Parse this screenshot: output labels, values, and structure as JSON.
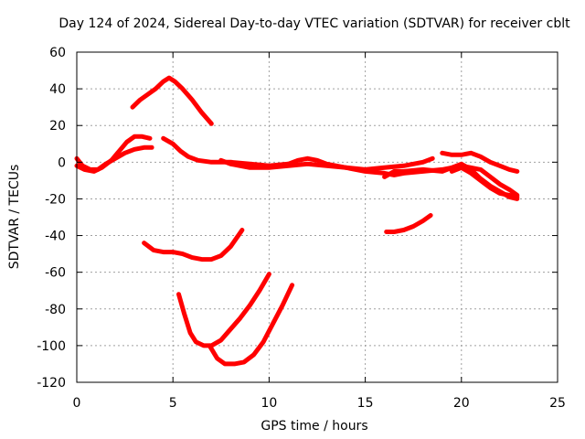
{
  "chart_data": {
    "type": "line",
    "title": "Day 124 of 2024, Sidereal Day-to-day VTEC variation (SDTVAR) for receiver cblt",
    "xlabel": "GPS time / hours",
    "ylabel": "SDTVAR / TECUs",
    "xlim": [
      0,
      25
    ],
    "ylim": [
      -120,
      60
    ],
    "xticks": [
      0,
      5,
      10,
      15,
      20,
      25
    ],
    "yticks": [
      -120,
      -100,
      -80,
      -60,
      -40,
      -20,
      0,
      20,
      40,
      60
    ],
    "grid": true,
    "color": "#ff0000",
    "series": [
      {
        "name": "arc-a",
        "points": [
          [
            0,
            2
          ],
          [
            0.3,
            -2
          ],
          [
            0.7,
            -4
          ],
          [
            1.1,
            -4
          ],
          [
            1.5,
            -1
          ],
          [
            2.0,
            2
          ],
          [
            2.5,
            5
          ],
          [
            3.0,
            7
          ],
          [
            3.5,
            8
          ],
          [
            3.9,
            8
          ]
        ]
      },
      {
        "name": "arc-b",
        "points": [
          [
            0,
            -2
          ],
          [
            0.4,
            -4
          ],
          [
            0.9,
            -5
          ],
          [
            1.3,
            -3
          ],
          [
            1.8,
            1
          ],
          [
            2.2,
            6
          ],
          [
            2.6,
            11
          ],
          [
            3.0,
            14
          ],
          [
            3.4,
            14
          ],
          [
            3.8,
            13
          ]
        ]
      },
      {
        "name": "arc-c",
        "points": [
          [
            2.9,
            30
          ],
          [
            3.3,
            34
          ],
          [
            3.7,
            37
          ],
          [
            4.1,
            40
          ],
          [
            4.5,
            44
          ],
          [
            4.8,
            46
          ],
          [
            5.1,
            44
          ],
          [
            5.5,
            40
          ],
          [
            6.0,
            34
          ],
          [
            6.5,
            27
          ],
          [
            7.0,
            21
          ]
        ]
      },
      {
        "name": "arc-d",
        "points": [
          [
            4.5,
            13
          ],
          [
            5.0,
            10
          ],
          [
            5.4,
            6
          ],
          [
            5.8,
            3
          ],
          [
            6.3,
            1
          ],
          [
            7.0,
            0
          ],
          [
            8.0,
            0
          ],
          [
            9.0,
            -1
          ],
          [
            10.0,
            -2
          ],
          [
            11.0,
            -1
          ],
          [
            11.5,
            1
          ],
          [
            12.0,
            2
          ],
          [
            12.5,
            1
          ],
          [
            13.0,
            -1
          ],
          [
            14.0,
            -3
          ],
          [
            15.0,
            -4
          ],
          [
            16.0,
            -3
          ],
          [
            17.0,
            -2
          ],
          [
            18.0,
            0
          ],
          [
            18.5,
            2
          ]
        ]
      },
      {
        "name": "arc-e",
        "points": [
          [
            7.5,
            1
          ],
          [
            8.0,
            -1
          ],
          [
            8.5,
            -2
          ],
          [
            9.0,
            -3
          ],
          [
            10.0,
            -3
          ],
          [
            11.0,
            -2
          ],
          [
            12.0,
            -1
          ],
          [
            13.0,
            -2
          ],
          [
            14.0,
            -3
          ],
          [
            15.0,
            -5
          ],
          [
            16.0,
            -6
          ],
          [
            16.5,
            -7
          ],
          [
            17.0,
            -6
          ],
          [
            18.0,
            -5
          ],
          [
            19.0,
            -4
          ],
          [
            20.0,
            -2
          ],
          [
            21.0,
            -4
          ],
          [
            21.5,
            -8
          ],
          [
            22.0,
            -12
          ],
          [
            22.5,
            -15
          ],
          [
            22.9,
            -18
          ]
        ]
      },
      {
        "name": "arc-f",
        "points": [
          [
            16.0,
            -8
          ],
          [
            16.5,
            -5
          ],
          [
            17.0,
            -5
          ],
          [
            18.0,
            -4
          ],
          [
            19.0,
            -5
          ],
          [
            19.5,
            -3
          ],
          [
            20.0,
            -1
          ],
          [
            20.5,
            -4
          ],
          [
            21.0,
            -9
          ],
          [
            21.5,
            -13
          ],
          [
            22.0,
            -16
          ],
          [
            22.5,
            -19
          ],
          [
            22.9,
            -20
          ]
        ]
      },
      {
        "name": "arc-g",
        "points": [
          [
            19.0,
            5
          ],
          [
            19.5,
            4
          ],
          [
            20.0,
            4
          ],
          [
            20.5,
            5
          ],
          [
            21.0,
            3
          ],
          [
            21.5,
            0
          ],
          [
            22.0,
            -2
          ],
          [
            22.5,
            -4
          ],
          [
            22.9,
            -5
          ]
        ]
      },
      {
        "name": "arc-h",
        "points": [
          [
            19.5,
            -5
          ],
          [
            20.0,
            -3
          ],
          [
            20.5,
            -6
          ],
          [
            21.0,
            -10
          ],
          [
            21.5,
            -14
          ],
          [
            22.0,
            -17
          ],
          [
            22.5,
            -18
          ],
          [
            22.9,
            -19
          ]
        ]
      },
      {
        "name": "arc-i",
        "points": [
          [
            3.5,
            -44
          ],
          [
            4.0,
            -48
          ],
          [
            4.5,
            -49
          ],
          [
            5.0,
            -49
          ],
          [
            5.5,
            -50
          ],
          [
            6.0,
            -52
          ],
          [
            6.5,
            -53
          ],
          [
            7.0,
            -53
          ],
          [
            7.5,
            -51
          ],
          [
            8.0,
            -46
          ],
          [
            8.4,
            -40
          ],
          [
            8.6,
            -37
          ]
        ]
      },
      {
        "name": "arc-j",
        "points": [
          [
            5.3,
            -72
          ],
          [
            5.6,
            -83
          ],
          [
            5.9,
            -93
          ],
          [
            6.2,
            -98
          ],
          [
            6.6,
            -100
          ],
          [
            7.0,
            -100
          ],
          [
            7.5,
            -97
          ],
          [
            8.0,
            -91
          ],
          [
            8.5,
            -85
          ],
          [
            9.0,
            -78
          ],
          [
            9.5,
            -70
          ],
          [
            10.0,
            -61
          ]
        ]
      },
      {
        "name": "arc-k",
        "points": [
          [
            6.9,
            -100
          ],
          [
            7.3,
            -107
          ],
          [
            7.7,
            -110
          ],
          [
            8.2,
            -110
          ],
          [
            8.7,
            -109
          ],
          [
            9.2,
            -105
          ],
          [
            9.7,
            -98
          ],
          [
            10.2,
            -88
          ],
          [
            10.7,
            -78
          ],
          [
            11.2,
            -67
          ]
        ]
      },
      {
        "name": "arc-l",
        "points": [
          [
            16.1,
            -38
          ],
          [
            16.5,
            -38
          ],
          [
            17.0,
            -37
          ],
          [
            17.5,
            -35
          ],
          [
            18.0,
            -32
          ],
          [
            18.4,
            -29
          ]
        ]
      }
    ]
  }
}
